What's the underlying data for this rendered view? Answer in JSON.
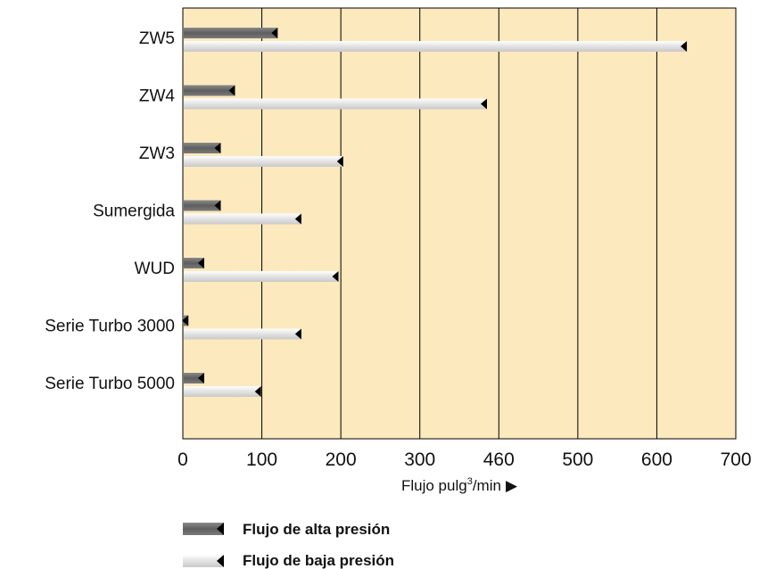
{
  "chart_data": {
    "type": "bar",
    "orientation": "horizontal",
    "categories": [
      "ZW5",
      "ZW4",
      "ZW3",
      "Sumergida",
      "WUD",
      "Serie Turbo 3000",
      "Serie Turbo 5000"
    ],
    "series": [
      {
        "name": "Flujo de alta presión",
        "values": [
          120,
          66,
          48,
          48,
          27,
          7,
          27
        ]
      },
      {
        "name": "Flujo de baja presión",
        "values": [
          638,
          385,
          203,
          150,
          197,
          150,
          99
        ]
      }
    ],
    "x_tick_labels": [
      "0",
      "100",
      "200",
      "300",
      "460",
      "500",
      "600",
      "700"
    ],
    "xlim": [
      0,
      700
    ],
    "xlabel": "Flujo pulg³/min ▶",
    "xlabel_text": "Flujo pulg",
    "xlabel_sup": "3",
    "xlabel_tail": "/min",
    "xlabel_arrow": "▶",
    "grid": "vertical",
    "legend_position": "bottom-left",
    "colors": {
      "plot_background": "#fce9bd",
      "high_pressure_bar": "#6b6b6b",
      "low_pressure_bar": "#e8e8e8",
      "grid": "#000000"
    }
  }
}
